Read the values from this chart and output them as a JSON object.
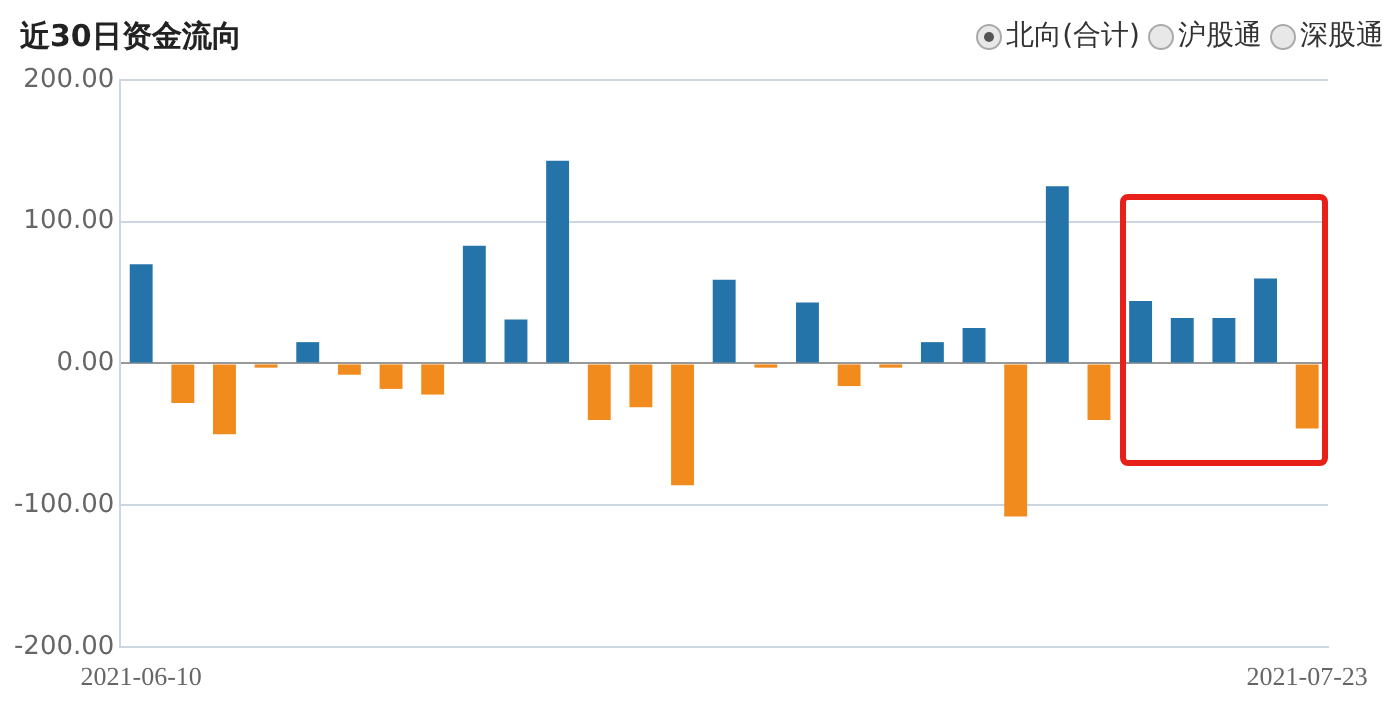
{
  "chart_data": {
    "type": "bar",
    "title": "近30日资金流向",
    "annotations": [
      "北向(合计)",
      "沪股通",
      "深股通"
    ],
    "categories": [
      "2021-06-10",
      null,
      null,
      null,
      null,
      null,
      null,
      null,
      null,
      null,
      null,
      null,
      null,
      null,
      null,
      null,
      null,
      null,
      null,
      null,
      null,
      null,
      null,
      null,
      null,
      null,
      null,
      null,
      "2021-07-23"
    ],
    "values": [
      70,
      -28,
      -50,
      -3,
      15,
      -8,
      -18,
      -22,
      83,
      31,
      143,
      -40,
      -31,
      -86,
      59,
      -3,
      43,
      -16,
      -3,
      15,
      25,
      -108,
      125,
      -40,
      44,
      32,
      32,
      60,
      -46
    ],
    "colors": [
      "#2574a9",
      "#f28b1e",
      "#f28b1e",
      "#f28b1e",
      "#2574a9",
      "#f28b1e",
      "#f28b1e",
      "#f28b1e",
      "#2574a9",
      "#2574a9",
      "#2574a9",
      "#f28b1e",
      "#f28b1e",
      "#f28b1e",
      "#2574a9",
      "#f28b1e",
      "#2574a9",
      "#f28b1e",
      "#f28b1e",
      "#2574a9",
      "#2574a9",
      "#f28b1e",
      "#2574a9",
      "#f28b1e",
      "#2574a9",
      "#2574a9",
      "#2574a9",
      "#2574a9",
      "#f28b1e"
    ],
    "ylim": [
      -200,
      200
    ],
    "yticks": [
      {
        "value": -200,
        "label": "-200.00"
      },
      {
        "value": -100,
        "label": "-100.00"
      },
      {
        "value": 0,
        "label": "0.00"
      },
      {
        "value": 100,
        "label": "100.00"
      },
      {
        "value": 200,
        "label": "200.00"
      }
    ],
    "grid": "y"
  }
}
